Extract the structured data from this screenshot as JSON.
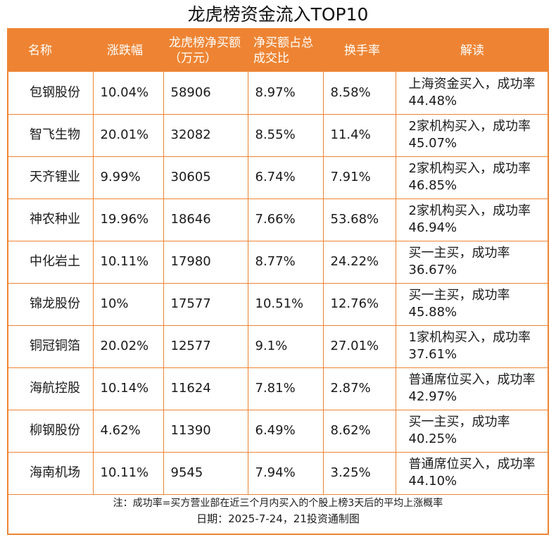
{
  "title": "龙虎榜资金流入TOP10",
  "columns": [
    "名称",
    "涨跌幅",
    "龙虎榜净买额（万元）",
    "净买额占总成交比",
    "换手率",
    "解读"
  ],
  "rows": [
    [
      "包钢股份",
      "10.04%",
      "58906",
      "8.97%",
      "8.58%",
      "上海资金买入，成功率44.48%"
    ],
    [
      "智飞生物",
      "20.01%",
      "32082",
      "8.55%",
      "11.4%",
      "2家机构买入，成功率45.07%"
    ],
    [
      "天齐锂业",
      "9.99%",
      "30605",
      "6.74%",
      "7.91%",
      "2家机构买入，成功率46.85%"
    ],
    [
      "神农种业",
      "19.96%",
      "18646",
      "7.66%",
      "53.68%",
      "2家机构买入，成功率46.94%"
    ],
    [
      "中化岩土",
      "10.11%",
      "17980",
      "8.77%",
      "24.22%",
      "买一主买，成功率36.67%"
    ],
    [
      "锦龙股份",
      "10%",
      "17577",
      "10.51%",
      "12.76%",
      "买一主买，成功率45.88%"
    ],
    [
      "铜冠铜箔",
      "20.02%",
      "12577",
      "9.1%",
      "27.01%",
      "1家机构买入，成功率37.61%"
    ],
    [
      "海航控股",
      "10.14%",
      "11624",
      "7.81%",
      "2.87%",
      "普通席位买入，成功率42.97%"
    ],
    [
      "柳钢股份",
      "4.62%",
      "11390",
      "6.49%",
      "8.62%",
      "买一主买，成功率40.25%"
    ],
    [
      "海南机场",
      "10.11%",
      "9545",
      "7.94%",
      "3.25%",
      "普通席位买入，成功率44.10%"
    ]
  ],
  "footnote": "注：成功率=买方营业部在近三个月内买入的个股上榜3天后的平均上涨概率",
  "date_line": "日期：2025-7-24，21投资通制图",
  "colors": {
    "accent": "#ee8433",
    "header_text": "#ffffff"
  }
}
